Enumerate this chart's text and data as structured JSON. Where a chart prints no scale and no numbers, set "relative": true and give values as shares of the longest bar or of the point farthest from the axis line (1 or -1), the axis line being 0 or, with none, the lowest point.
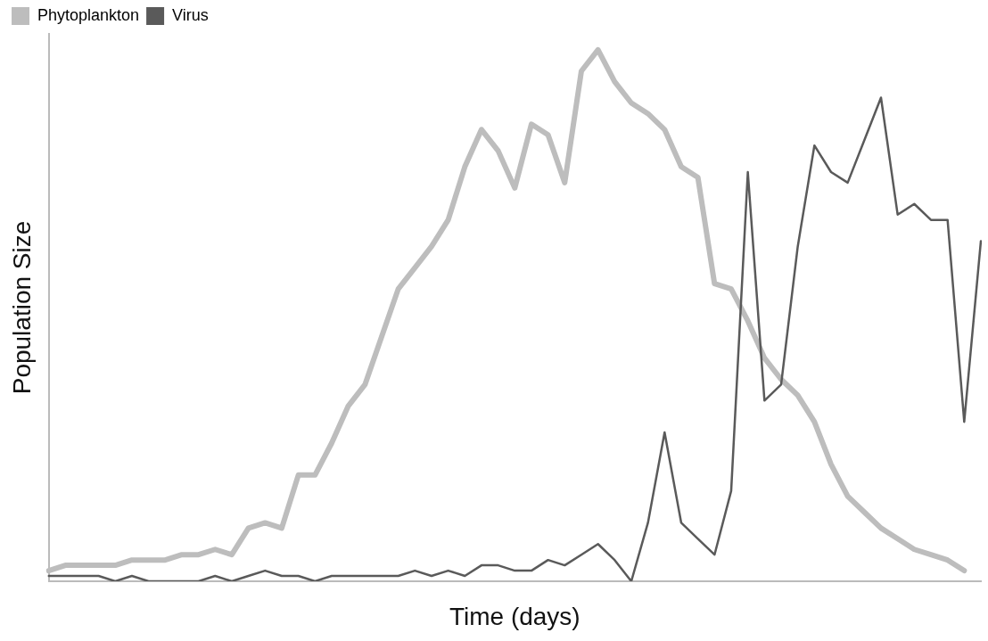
{
  "chart_data": {
    "type": "line",
    "xlabel": "Time (days)",
    "ylabel": "Population Size",
    "relative": true,
    "legend": "top left",
    "marker": "none",
    "line_style": "solid",
    "grid": false,
    "categories": [
      null,
      null,
      null,
      null,
      null,
      null,
      null,
      null,
      null,
      null,
      null,
      null,
      null,
      null,
      null,
      null,
      null,
      null,
      null,
      null,
      null,
      null,
      null,
      null,
      null,
      null,
      null,
      null,
      null,
      null,
      null,
      null,
      null,
      null,
      null,
      null,
      null,
      null,
      null,
      null,
      null,
      null,
      null,
      null,
      null,
      null,
      null,
      null,
      null,
      null,
      null,
      null,
      null,
      null,
      null,
      null,
      null
    ],
    "series": [
      {
        "name": "Phytoplankton",
        "color": "#bdbdbd",
        "values": [
          0.02,
          0.03,
          0.03,
          0.03,
          0.03,
          0.04,
          0.04,
          0.04,
          0.05,
          0.05,
          0.06,
          0.05,
          0.1,
          0.11,
          0.1,
          0.2,
          0.2,
          0.26,
          0.33,
          0.37,
          0.46,
          0.55,
          0.59,
          0.63,
          0.68,
          0.78,
          0.85,
          0.81,
          0.74,
          0.86,
          0.84,
          0.75,
          0.96,
          1,
          0.94,
          0.9,
          0.88,
          0.85,
          0.78,
          0.76,
          0.56,
          0.55,
          0.49,
          0.42,
          0.38,
          0.35,
          0.3,
          0.22,
          0.16,
          0.13,
          0.1,
          0.08,
          0.06,
          0.05,
          0.04,
          0.02,
          null
        ]
      },
      {
        "name": "Virus",
        "color": "#5a5a5a",
        "values": [
          0.01,
          0.01,
          0.01,
          0.01,
          0,
          0.01,
          0,
          0,
          0,
          0,
          0.01,
          0,
          0.01,
          0.02,
          0.01,
          0.01,
          0,
          0.01,
          0.01,
          0.01,
          0.01,
          0.01,
          0.02,
          0.01,
          0.02,
          0.01,
          0.03,
          0.03,
          0.02,
          0.02,
          0.04,
          0.03,
          0.05,
          0.07,
          0.04,
          0,
          0.11,
          0.28,
          0.11,
          0.08,
          0.05,
          0.17,
          0.77,
          0.34,
          0.37,
          0.63,
          0.82,
          0.77,
          0.75,
          0.83,
          0.91,
          0.69,
          0.71,
          0.68,
          0.68,
          0.3,
          0.64
        ]
      }
    ]
  }
}
